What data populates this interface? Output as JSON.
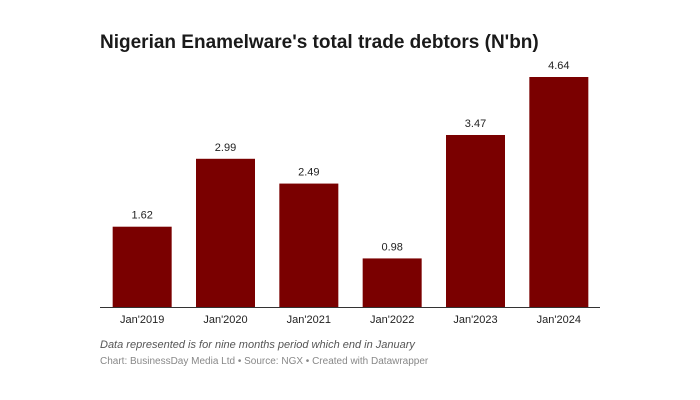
{
  "chart_data": {
    "type": "bar",
    "title": "Nigerian Enamelware's total trade debtors (N'bn)",
    "categories": [
      "Jan'2019",
      "Jan'2020",
      "Jan'2021",
      "Jan'2022",
      "Jan'2023",
      "Jan'2024"
    ],
    "values": [
      1.62,
      2.99,
      2.49,
      0.98,
      3.47,
      4.64
    ],
    "value_labels": [
      "1.62",
      "2.99",
      "2.49",
      "0.98",
      "3.47",
      "4.64"
    ],
    "xlabel": "",
    "ylabel": "",
    "ylim": [
      0,
      4.64
    ],
    "grid": false,
    "bar_color": "#7a0000",
    "note": "Data represented is for nine months period which end in January",
    "credit": "Chart: BusinessDay Media Ltd • Source: NGX • Created with Datawrapper"
  }
}
